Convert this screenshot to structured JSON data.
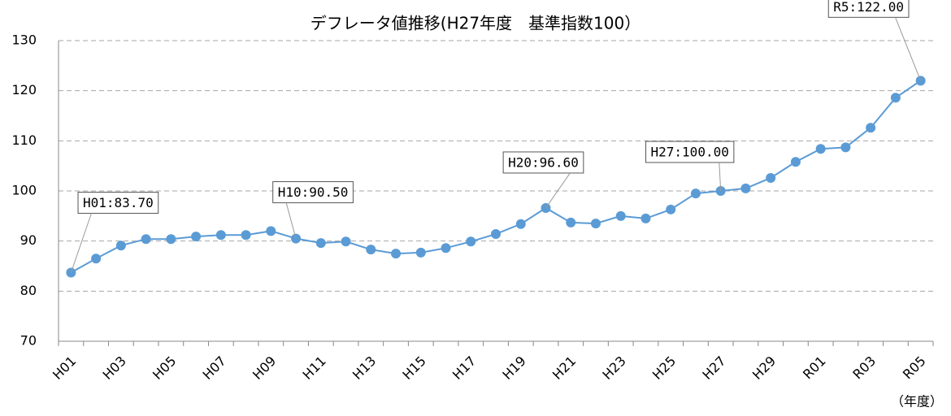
{
  "chart_data": {
    "type": "line",
    "title": "デフレータ値推移(H27年度　基準指数100）",
    "x_label": "（年度）",
    "categories": [
      "H01",
      null,
      "H03",
      null,
      "H05",
      null,
      "H07",
      null,
      "H09",
      null,
      "H11",
      null,
      "H13",
      null,
      "H15",
      null,
      "H17",
      null,
      "H19",
      null,
      "H21",
      null,
      "H23",
      null,
      "H25",
      null,
      "H27",
      null,
      "H29",
      null,
      "R01",
      null,
      "R03",
      null,
      "R05"
    ],
    "series": [
      {
        "name": "デフレータ値",
        "color": "#5b9bd5",
        "values": [
          83.7,
          86.5,
          89.1,
          90.4,
          90.4,
          90.9,
          91.2,
          91.2,
          92.0,
          90.5,
          89.6,
          89.9,
          88.3,
          87.5,
          87.7,
          88.6,
          89.9,
          91.4,
          93.4,
          96.6,
          93.7,
          93.5,
          95.0,
          94.5,
          96.3,
          99.5,
          100.0,
          100.5,
          102.6,
          105.8,
          108.4,
          108.7,
          112.6,
          118.6,
          122.0
        ]
      }
    ],
    "ylim": [
      70,
      130
    ],
    "yticks": [
      70,
      80,
      90,
      100,
      110,
      120,
      130
    ],
    "grid": true,
    "annotations": [
      {
        "text": "H01:83.70",
        "index": 0
      },
      {
        "text": "H10:90.50",
        "index": 9
      },
      {
        "text": "H20:96.60",
        "index": 19
      },
      {
        "text": "H27:100.00",
        "index": 26
      },
      {
        "text": "R5:122.00",
        "index": 34
      }
    ]
  }
}
